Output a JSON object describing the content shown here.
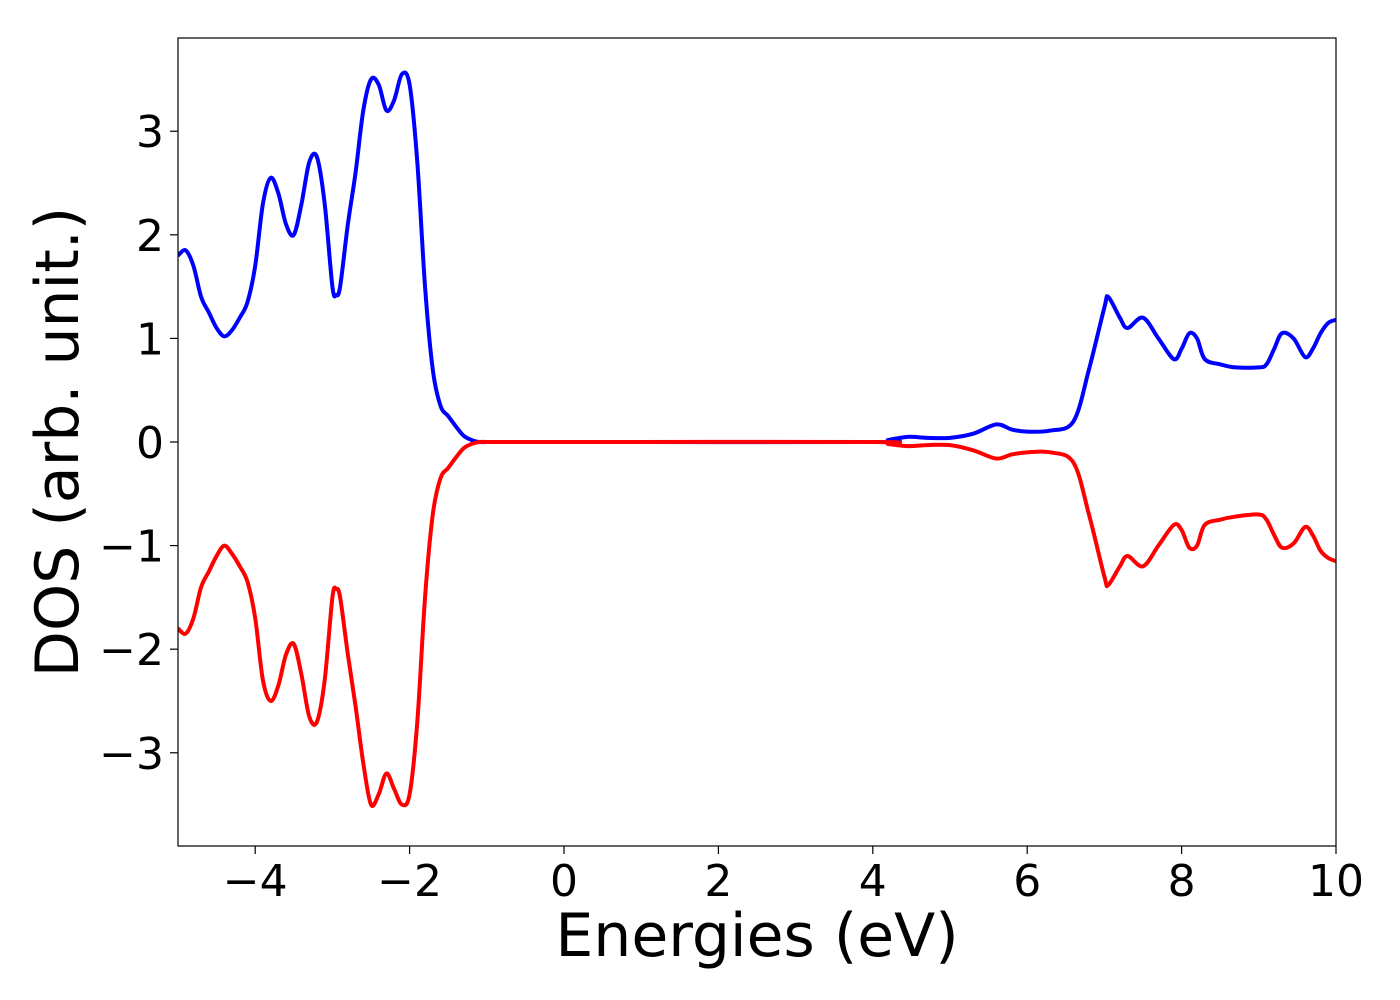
{
  "chart_data": {
    "type": "line",
    "title": "",
    "xlabel": "Energies (eV)",
    "ylabel": "DOS (arb. unit.)",
    "xlim": [
      -5,
      10
    ],
    "ylim": [
      -3.9,
      3.9
    ],
    "xticks": [
      -4,
      -2,
      0,
      2,
      4,
      6,
      8,
      10
    ],
    "xtick_labels": [
      "−4",
      "−2",
      "0",
      "2",
      "4",
      "6",
      "8",
      "10"
    ],
    "yticks": [
      -3,
      -2,
      -1,
      0,
      1,
      2,
      3
    ],
    "ytick_labels": [
      "−3",
      "−2",
      "−1",
      "0",
      "1",
      "2",
      "3"
    ],
    "grid": false,
    "legend": "none",
    "series": [
      {
        "color": "#0000ff",
        "x": [
          -5.0,
          -4.9,
          -4.8,
          -4.7,
          -4.6,
          -4.5,
          -4.4,
          -4.3,
          -4.2,
          -4.1,
          -4.0,
          -3.9,
          -3.8,
          -3.7,
          -3.6,
          -3.5,
          -3.4,
          -3.3,
          -3.2,
          -3.1,
          -3.0,
          -2.95,
          -2.9,
          -2.8,
          -2.7,
          -2.6,
          -2.5,
          -2.4,
          -2.3,
          -2.2,
          -2.1,
          -2.0,
          -1.9,
          -1.8,
          -1.7,
          -1.6,
          -1.5,
          -1.4,
          -1.3,
          -1.2,
          -1.1,
          -1.0,
          -0.9,
          -0.8,
          -0.7,
          -0.6,
          -0.5,
          0.0,
          4.0,
          4.2,
          4.45,
          4.7,
          5.0,
          5.3,
          5.6,
          5.8,
          6.0,
          6.3,
          6.6,
          6.8,
          7.0,
          7.05,
          7.2,
          7.3,
          7.5,
          7.7,
          7.9,
          8.0,
          8.1,
          8.2,
          8.3,
          8.5,
          8.7,
          9.0,
          9.1,
          9.2,
          9.3,
          9.45,
          9.6,
          9.7,
          9.8,
          9.9,
          10.0
        ],
        "y": [
          1.8,
          1.85,
          1.7,
          1.4,
          1.25,
          1.1,
          1.02,
          1.08,
          1.2,
          1.35,
          1.7,
          2.3,
          2.55,
          2.4,
          2.1,
          2.0,
          2.3,
          2.7,
          2.75,
          2.3,
          1.5,
          1.42,
          1.5,
          2.1,
          2.6,
          3.2,
          3.5,
          3.45,
          3.2,
          3.3,
          3.55,
          3.45,
          2.7,
          1.5,
          0.7,
          0.35,
          0.25,
          0.15,
          0.06,
          0.02,
          0.0,
          0.0,
          0.0,
          0.0,
          0.0,
          0.0,
          0.0,
          0.0,
          0.0,
          0.02,
          0.05,
          0.04,
          0.04,
          0.08,
          0.17,
          0.12,
          0.1,
          0.11,
          0.2,
          0.7,
          1.3,
          1.4,
          1.2,
          1.1,
          1.2,
          1.0,
          0.8,
          0.9,
          1.05,
          1.0,
          0.8,
          0.75,
          0.72,
          0.72,
          0.75,
          0.9,
          1.05,
          1.0,
          0.82,
          0.9,
          1.05,
          1.15,
          1.18
        ]
      },
      {
        "color": "#ff0000",
        "x": [
          -5.0,
          -4.9,
          -4.8,
          -4.7,
          -4.6,
          -4.5,
          -4.4,
          -4.3,
          -4.2,
          -4.1,
          -4.0,
          -3.9,
          -3.8,
          -3.7,
          -3.6,
          -3.5,
          -3.4,
          -3.3,
          -3.2,
          -3.1,
          -3.0,
          -2.95,
          -2.9,
          -2.8,
          -2.7,
          -2.6,
          -2.5,
          -2.4,
          -2.3,
          -2.2,
          -2.1,
          -2.0,
          -1.9,
          -1.8,
          -1.7,
          -1.6,
          -1.5,
          -1.4,
          -1.3,
          -1.2,
          -1.1,
          -1.0,
          -0.9,
          -0.8,
          -0.7,
          -0.6,
          -0.5,
          0.0,
          4.0,
          4.2,
          4.45,
          4.7,
          5.0,
          5.3,
          5.6,
          5.8,
          6.0,
          6.3,
          6.6,
          6.8,
          7.0,
          7.05,
          7.2,
          7.3,
          7.5,
          7.7,
          7.9,
          8.0,
          8.1,
          8.2,
          8.3,
          8.5,
          8.7,
          9.0,
          9.1,
          9.2,
          9.3,
          9.45,
          9.6,
          9.7,
          9.8,
          9.9,
          10.0
        ],
        "y": [
          -1.8,
          -1.85,
          -1.7,
          -1.4,
          -1.25,
          -1.1,
          -1.0,
          -1.08,
          -1.2,
          -1.35,
          -1.7,
          -2.3,
          -2.5,
          -2.35,
          -2.05,
          -1.95,
          -2.25,
          -2.65,
          -2.7,
          -2.3,
          -1.5,
          -1.42,
          -1.5,
          -2.05,
          -2.55,
          -3.1,
          -3.5,
          -3.4,
          -3.2,
          -3.35,
          -3.5,
          -3.4,
          -2.7,
          -1.5,
          -0.7,
          -0.35,
          -0.25,
          -0.15,
          -0.06,
          -0.02,
          0.0,
          0.0,
          0.0,
          0.0,
          0.0,
          0.0,
          0.0,
          0.0,
          0.0,
          -0.02,
          -0.04,
          -0.03,
          -0.03,
          -0.08,
          -0.16,
          -0.12,
          -0.1,
          -0.1,
          -0.2,
          -0.7,
          -1.3,
          -1.38,
          -1.2,
          -1.1,
          -1.2,
          -1.0,
          -0.8,
          -0.85,
          -1.02,
          -1.0,
          -0.8,
          -0.75,
          -0.72,
          -0.7,
          -0.75,
          -0.9,
          -1.02,
          -0.98,
          -0.82,
          -0.9,
          -1.05,
          -1.12,
          -1.15
        ]
      }
    ]
  }
}
